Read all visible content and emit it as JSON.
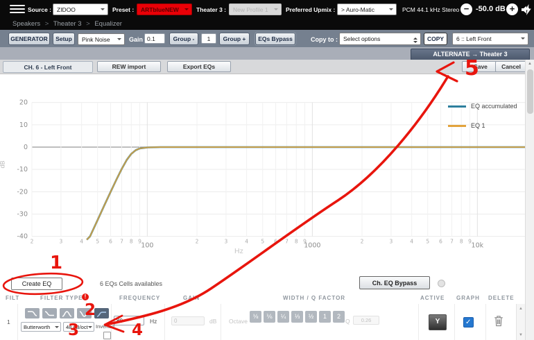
{
  "topbar": {
    "source_label": "Source :",
    "source_value": "ZIDOO",
    "preset_label": "Preset :",
    "preset_value": "ARTblueNEW",
    "theater_label": "Theater 3 :",
    "theater_value": "New Profile 1",
    "upmix_label": "Preferred Upmix :",
    "upmix_value": "> Auro-Matic",
    "stream_info": "PCM 44.1 kHz Stereo",
    "volume_display": "-50.0 dB",
    "volume_minus": "−",
    "volume_plus": "+"
  },
  "breadcrumb": {
    "sep": ">",
    "items": [
      "Speakers",
      "Theater 3",
      "Equalizer"
    ]
  },
  "toolbar": {
    "generator": "GENERATOR",
    "setup": "Setup",
    "noise_value": "Pink Noise",
    "gain_label": "Gain",
    "gain_value": "0.1",
    "group_minus": "Group -",
    "group_value": "1",
    "group_plus": "Group +",
    "eqs_bypass": "EQs Bypass",
    "copy_to_label": "Copy to :",
    "copy_target_value": "Select options",
    "copy": "COPY",
    "channel_value": "6 :: Left Front"
  },
  "subheader": {
    "alternate": "ALTERNATE → Theater 3",
    "save": "Save",
    "cancel": "Cancel",
    "channel_tab": "CH. 6 - Left Front",
    "rew_import": "REW import",
    "export_eqs": "Export EQs"
  },
  "chart_data": {
    "type": "line",
    "xlabel": "Hz",
    "ylabel": "dB",
    "x_scale": "log",
    "xlim": [
      20,
      20000
    ],
    "ylim": [
      -40,
      20
    ],
    "yticks": [
      20,
      10,
      0,
      -10,
      -20,
      -30,
      -40
    ],
    "xticks": [
      {
        "f": 20,
        "label": "2"
      },
      {
        "f": 30,
        "label": "3"
      },
      {
        "f": 40,
        "label": "4"
      },
      {
        "f": 50,
        "label": "5"
      },
      {
        "f": 60,
        "label": "6"
      },
      {
        "f": 70,
        "label": "7"
      },
      {
        "f": 80,
        "label": "8"
      },
      {
        "f": 90,
        "label": "9"
      },
      {
        "f": 100,
        "label": "100",
        "major": true
      },
      {
        "f": 200,
        "label": "2"
      },
      {
        "f": 300,
        "label": "3"
      },
      {
        "f": 400,
        "label": "4"
      },
      {
        "f": 500,
        "label": "5"
      },
      {
        "f": 600,
        "label": "6"
      },
      {
        "f": 700,
        "label": "7"
      },
      {
        "f": 800,
        "label": "8"
      },
      {
        "f": 900,
        "label": "9"
      },
      {
        "f": 1000,
        "label": "1000",
        "major": true
      },
      {
        "f": 2000,
        "label": "2"
      },
      {
        "f": 3000,
        "label": "3"
      },
      {
        "f": 4000,
        "label": "4"
      },
      {
        "f": 5000,
        "label": "5"
      },
      {
        "f": 6000,
        "label": "6"
      },
      {
        "f": 7000,
        "label": "7"
      },
      {
        "f": 8000,
        "label": "8"
      },
      {
        "f": 9000,
        "label": "9"
      },
      {
        "f": 10000,
        "label": "10k",
        "major": true
      },
      {
        "f": 20000,
        "label": "2"
      }
    ],
    "legend_position": "top-right",
    "series": [
      {
        "name": "EQ accumulated",
        "color": "#2d7f9d",
        "points": [
          [
            43,
            -44
          ],
          [
            45,
            -40
          ],
          [
            50,
            -32.7
          ],
          [
            55,
            -26
          ],
          [
            60,
            -20
          ],
          [
            65,
            -14.6
          ],
          [
            70,
            -9.8
          ],
          [
            75,
            -5.8
          ],
          [
            80,
            -3
          ],
          [
            85,
            -1.4
          ],
          [
            90,
            -0.6
          ],
          [
            100,
            -0.15
          ],
          [
            120,
            0
          ],
          [
            20000,
            0
          ]
        ]
      },
      {
        "name": "EQ 1",
        "color": "#e2a33c",
        "points": [
          [
            43,
            -44
          ],
          [
            45,
            -40
          ],
          [
            50,
            -32.7
          ],
          [
            55,
            -26
          ],
          [
            60,
            -20
          ],
          [
            65,
            -14.6
          ],
          [
            70,
            -9.8
          ],
          [
            75,
            -5.8
          ],
          [
            80,
            -3
          ],
          [
            85,
            -1.4
          ],
          [
            90,
            -0.6
          ],
          [
            100,
            -0.15
          ],
          [
            120,
            0
          ],
          [
            20000,
            0
          ]
        ]
      }
    ]
  },
  "eq_section": {
    "create_eq": "Create EQ",
    "cells_available": "6 EQs Cells availables",
    "ch_eq_bypass": "Ch. EQ Bypass"
  },
  "table": {
    "headers": [
      "FILT",
      "FILTER TYPE",
      "FREQUENCY",
      "GAIN",
      "WIDTH / Q FACTOR",
      "ACTIVE",
      "GRAPH",
      "DELETE"
    ],
    "info_badge": "!",
    "row": {
      "num": "1",
      "filter_family": "Butterworth",
      "slope": "48 dB/oct",
      "inverted_label": "Inverted",
      "frequency_value": "80",
      "frequency_unit": "Hz",
      "gain_value": "0",
      "gain_unit": "dB",
      "octave_label": "Octave",
      "octave_options": [
        "⅛",
        "⅙",
        "¼",
        "⅓",
        "½",
        "1",
        "2"
      ],
      "q_label": "Q",
      "q_value": "0.26",
      "active_value": "Y"
    }
  },
  "annotations": {
    "color": "#e8150d",
    "n1": "1",
    "n2": "2",
    "n3": "3",
    "n4": "4",
    "n5": "5"
  }
}
